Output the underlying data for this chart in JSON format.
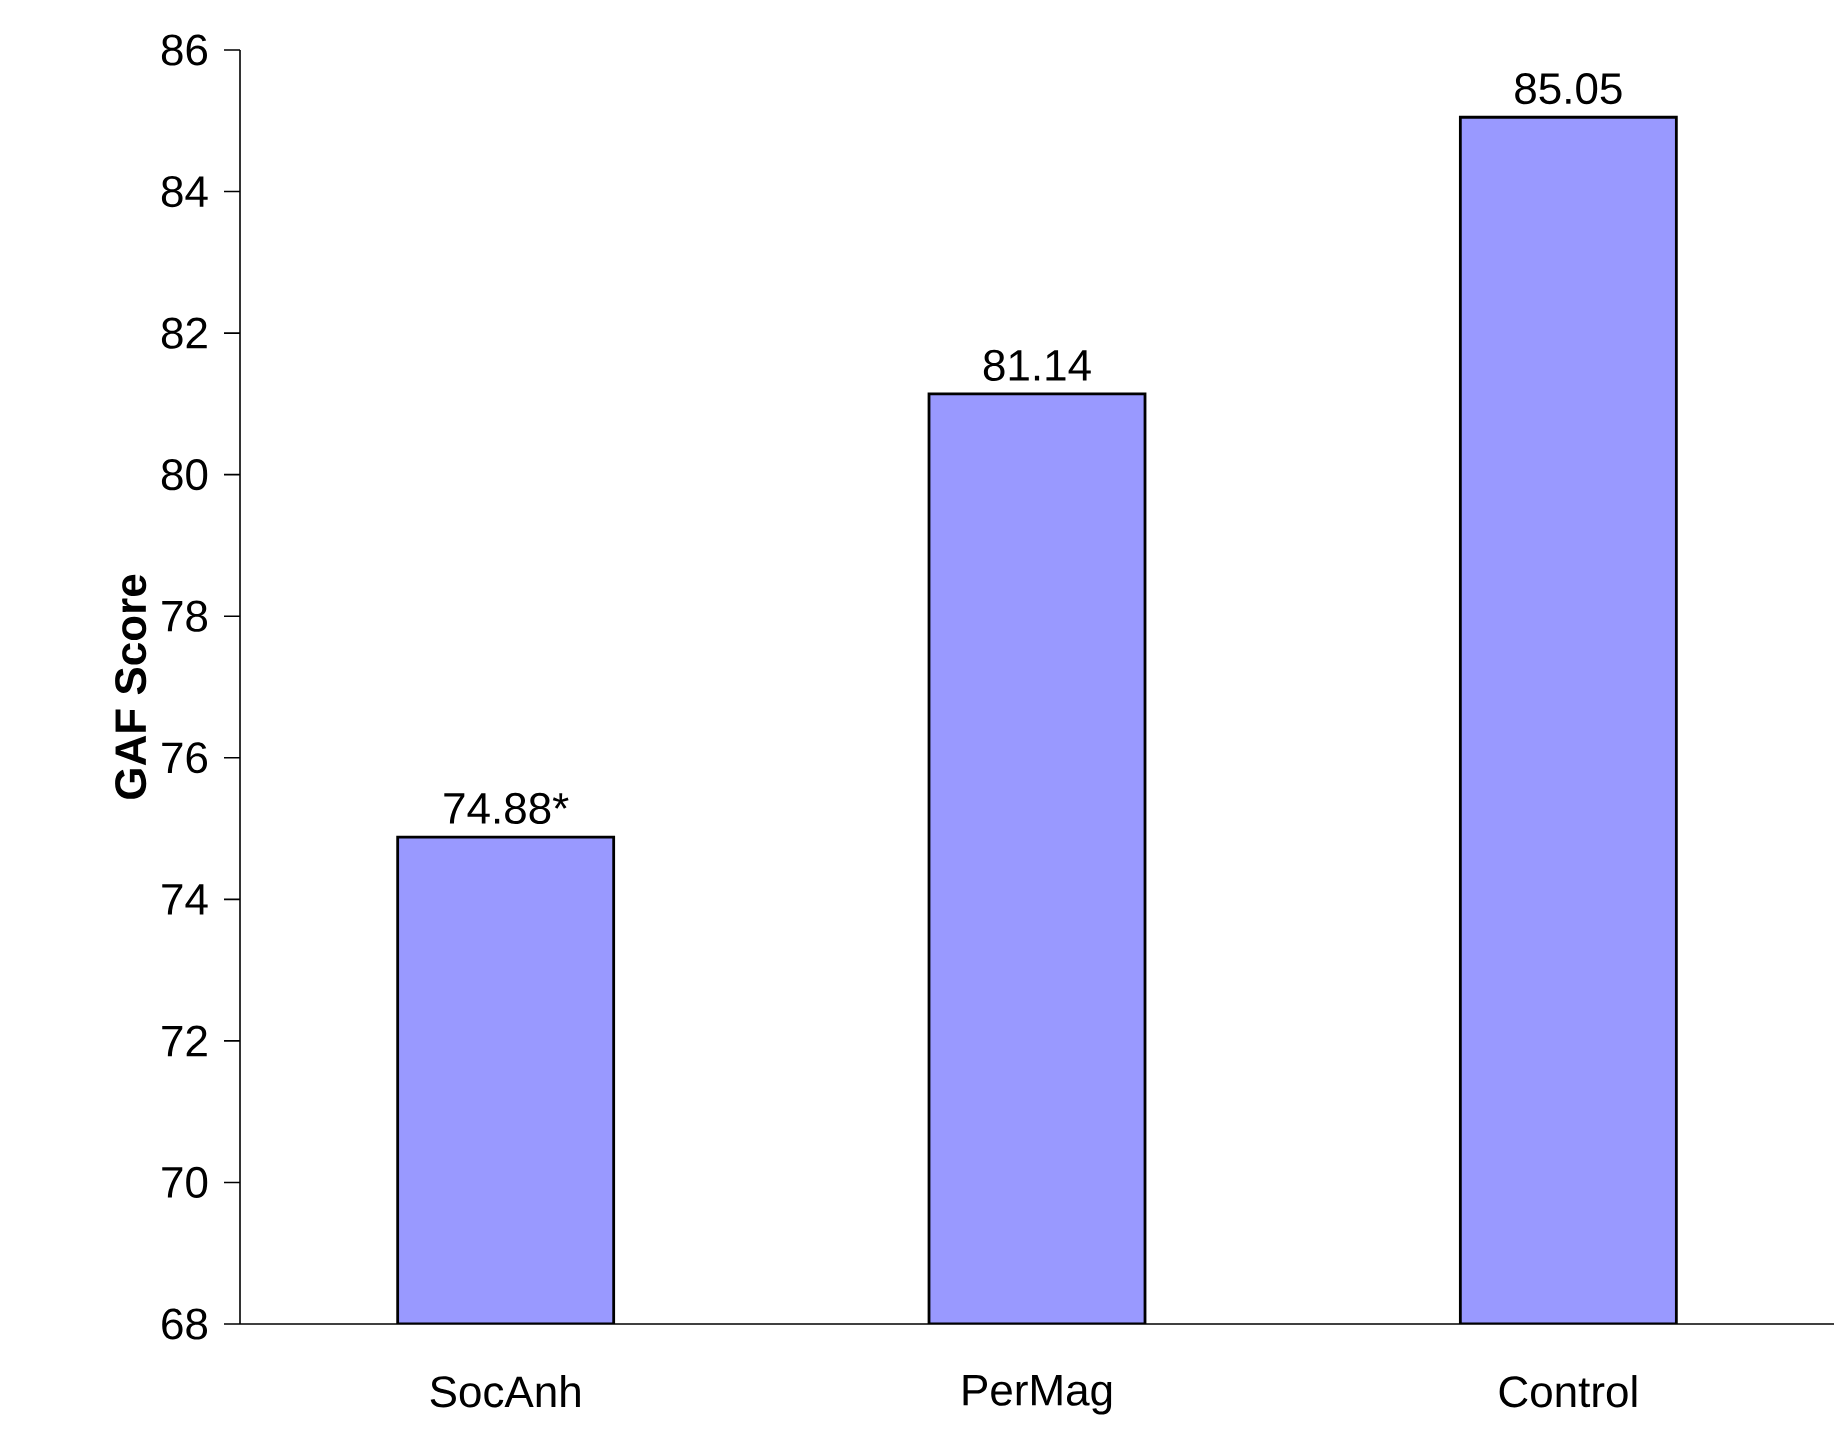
{
  "chart_data": {
    "type": "bar",
    "ylabel": "GAF Score",
    "categories": [
      "SocAnh",
      "PerMag",
      "Control"
    ],
    "values": [
      74.88,
      81.14,
      85.05
    ],
    "value_labels": [
      "74.88*",
      "81.14",
      "85.05"
    ],
    "color": "#9999ff",
    "ylim": [
      68,
      86
    ],
    "yticks": [
      68,
      70,
      72,
      74,
      76,
      78,
      80,
      82,
      84,
      86
    ],
    "grid": false
  }
}
